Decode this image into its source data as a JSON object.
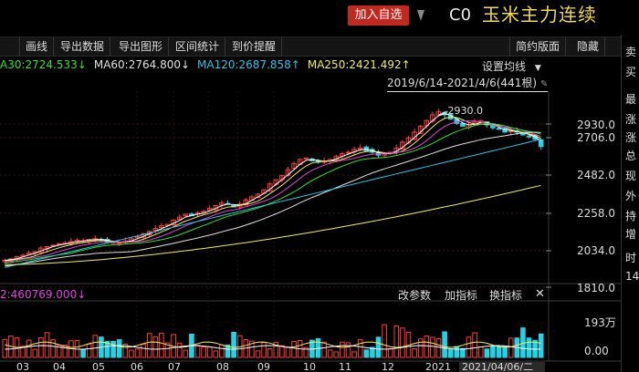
{
  "header": {
    "add_watch_label": "加入自选",
    "code": "C0",
    "name": "玉米主力连续",
    "accent": "#c1281f",
    "name_color": "#f1d94c"
  },
  "toolbar": {
    "items": [
      "画线",
      "导出数据",
      "导出图形",
      "区间统计",
      "到价提醒"
    ],
    "right_items": [
      "简约版面",
      "隐藏"
    ]
  },
  "ma_legend": {
    "items": [
      {
        "text": "A30:2724.533↓",
        "color": "#2ee12e"
      },
      {
        "text": "MA60:2764.800↓",
        "color": "#e0e0e0"
      },
      {
        "text": "MA120:2687.858↑",
        "color": "#25c8e8"
      },
      {
        "text": "MA250:2421.492↑",
        "color": "#f2ec5c"
      }
    ],
    "settings_label": "设置均线",
    "range_label": "2019/6/14-2021/4/6(441根)"
  },
  "side_panel": {
    "items": [
      "卖",
      "买",
      "最",
      "涨",
      "涨",
      "总",
      "现",
      "外",
      "持",
      "增",
      "时",
      "14"
    ]
  },
  "price_axis": {
    "ticks": [
      "2930.0",
      "2706.0",
      "2482.0",
      "2258.0",
      "2034.0",
      "1810.0"
    ]
  },
  "volume_pane": {
    "indicator_label": "2:460769.000↓",
    "buttons": [
      "改参数",
      "加指标",
      "换指标"
    ],
    "close_label": "✕",
    "ticks": [
      "193万",
      "0.00"
    ]
  },
  "date_axis": {
    "ticks": [
      "03",
      "04",
      "05",
      "06",
      "07",
      "08",
      "09",
      "10",
      "11",
      "12",
      "2021"
    ],
    "cursor_date": "2021/04/06/二"
  },
  "chart_data": {
    "type": "candlestick",
    "y_range": [
      1810,
      2930
    ],
    "peak_annotation": "2930.0",
    "price_ticks": [
      2930.0,
      2706.0,
      2482.0,
      2258.0,
      2034.0,
      1810.0
    ],
    "closes": [
      1870,
      1880,
      1895,
      1905,
      1920,
      1930,
      1955,
      1965,
      1975,
      1985,
      1990,
      2000,
      2010,
      2005,
      2015,
      2020,
      2010,
      2000,
      1995,
      1990,
      2005,
      2020,
      2035,
      2055,
      2070,
      2090,
      2110,
      2120,
      2150,
      2170,
      2190,
      2180,
      2200,
      2210,
      2230,
      2250,
      2270,
      2260,
      2240,
      2260,
      2290,
      2310,
      2330,
      2360,
      2400,
      2430,
      2460,
      2500,
      2540,
      2570,
      2580,
      2560,
      2550,
      2560,
      2570,
      2590,
      2610,
      2620,
      2640,
      2650,
      2630,
      2620,
      2600,
      2610,
      2620,
      2650,
      2690,
      2720,
      2760,
      2800,
      2840,
      2880,
      2900,
      2880,
      2850,
      2820,
      2800,
      2810,
      2830,
      2840,
      2810,
      2790,
      2780,
      2760,
      2770,
      2760,
      2740,
      2730,
      2710,
      2660
    ],
    "ma_series": [
      {
        "name": "MA30",
        "color": "#2ee12e"
      },
      {
        "name": "MA60",
        "color": "#e0e0e0"
      },
      {
        "name": "MA120",
        "color": "#25c8e8"
      },
      {
        "name": "MA250",
        "color": "#f2ec5c"
      }
    ],
    "volume_range": [
      0,
      1930000
    ]
  }
}
